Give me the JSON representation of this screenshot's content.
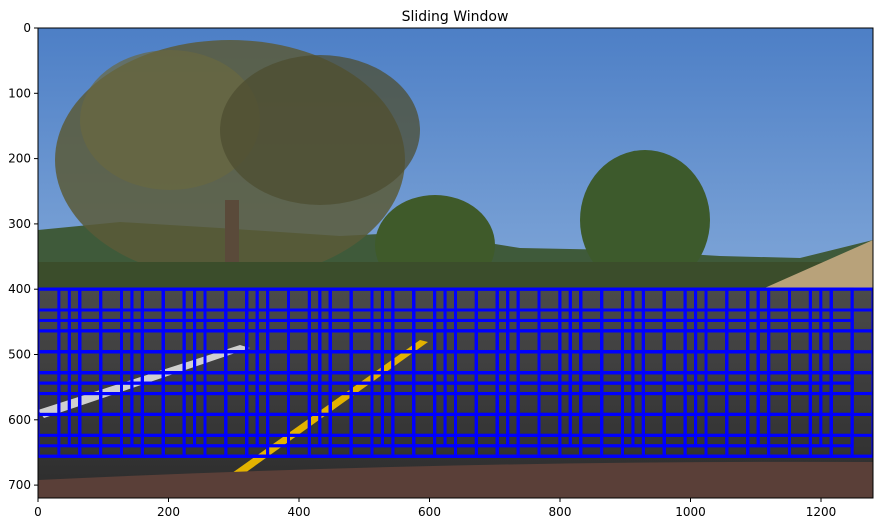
{
  "figure": {
    "title": "Sliding Window",
    "x_ticks": [
      "0",
      "200",
      "400",
      "600",
      "800",
      "1000",
      "1200"
    ],
    "y_ticks": [
      "0",
      "100",
      "200",
      "300",
      "400",
      "500",
      "600",
      "700"
    ]
  },
  "image": {
    "width": 1280,
    "height": 720,
    "description_icon": "road-scene-image"
  },
  "sliding_windows": {
    "y_start": 400,
    "y_stop": 656,
    "window_sizes": [
      64,
      96,
      128
    ],
    "overlap": 0.5,
    "box_color": "#0000ff"
  },
  "colors": {
    "sky_top": "#5f8fcf",
    "sky_bottom": "#9fbfe0",
    "tree": "#4a4a2a",
    "road": "#3a3a3a",
    "lane_yellow": "#e0b000"
  }
}
